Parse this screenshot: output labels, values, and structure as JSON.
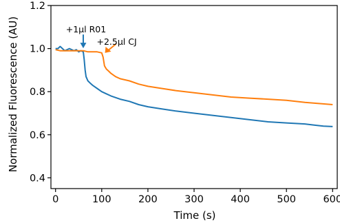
{
  "chart_data": {
    "type": "line",
    "xlabel": "Time (s)",
    "ylabel": "Normalized Fluorescence (AU)",
    "xlim": [
      -10,
      610
    ],
    "ylim": [
      0.35,
      1.2
    ],
    "xticks": [
      0,
      100,
      200,
      300,
      400,
      500,
      600
    ],
    "xtick_labels": [
      "0",
      "100",
      "200",
      "300",
      "400",
      "500",
      "600"
    ],
    "yticks": [
      0.4,
      0.6,
      0.8,
      1.0,
      1.2
    ],
    "ytick_labels": [
      "0.4",
      "0.6",
      "0.8",
      "1.0",
      "1.2"
    ],
    "grid": false,
    "series": [
      {
        "color": "#1f77b4",
        "x": [
          0,
          5,
          10,
          15,
          20,
          25,
          30,
          35,
          40,
          45,
          50,
          55,
          60,
          62,
          64,
          66,
          70,
          75,
          80,
          90,
          100,
          110,
          120,
          140,
          160,
          180,
          200,
          230,
          260,
          300,
          340,
          380,
          420,
          460,
          500,
          540,
          560,
          580,
          600
        ],
        "y": [
          1.0,
          1.0,
          1.01,
          1.0,
          0.99,
          0.995,
          1.0,
          0.995,
          0.99,
          0.995,
          0.985,
          0.99,
          0.985,
          0.95,
          0.9,
          0.87,
          0.85,
          0.84,
          0.83,
          0.815,
          0.8,
          0.79,
          0.78,
          0.765,
          0.755,
          0.74,
          0.73,
          0.72,
          0.71,
          0.7,
          0.69,
          0.68,
          0.67,
          0.66,
          0.655,
          0.65,
          0.645,
          0.64,
          0.638
        ]
      },
      {
        "color": "#ff7f0e",
        "x": [
          0,
          10,
          20,
          30,
          40,
          50,
          60,
          70,
          80,
          90,
          100,
          103,
          106,
          110,
          115,
          120,
          130,
          140,
          160,
          180,
          200,
          230,
          260,
          300,
          340,
          380,
          420,
          460,
          500,
          540,
          570,
          600
        ],
        "y": [
          0.995,
          0.99,
          0.99,
          0.99,
          0.99,
          0.99,
          0.99,
          0.985,
          0.985,
          0.985,
          0.98,
          0.96,
          0.92,
          0.905,
          0.895,
          0.885,
          0.87,
          0.86,
          0.85,
          0.835,
          0.825,
          0.815,
          0.805,
          0.795,
          0.785,
          0.775,
          0.77,
          0.765,
          0.76,
          0.75,
          0.745,
          0.74
        ]
      }
    ],
    "annotations": [
      {
        "text": "+1µl R01",
        "color": "#1f77b4",
        "x": 60,
        "y": 0.995
      },
      {
        "text": "+2.5µl CJ",
        "color": "#ff7f0e",
        "x": 107,
        "y": 0.98
      }
    ]
  }
}
